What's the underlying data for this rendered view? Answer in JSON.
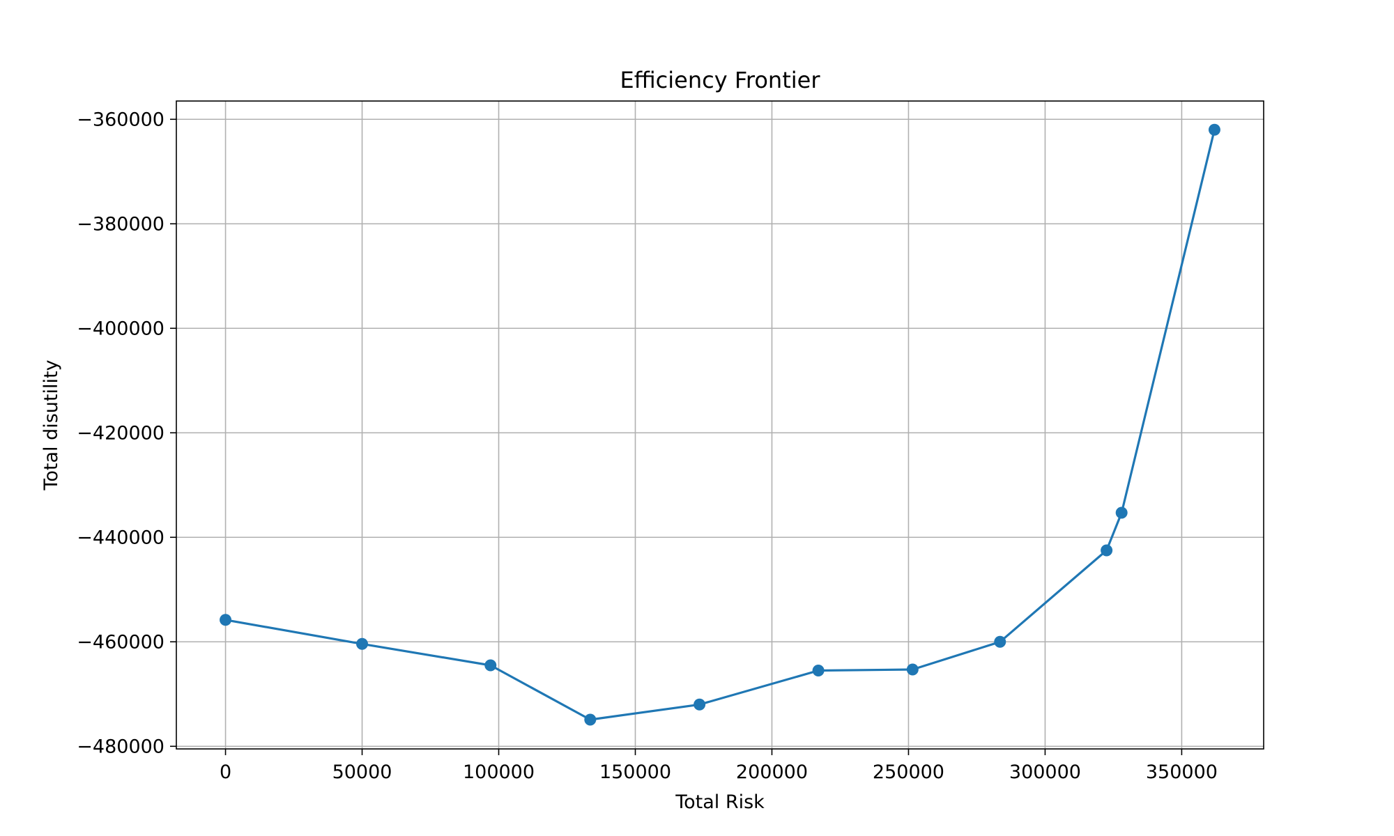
{
  "chart_data": {
    "type": "line",
    "title": "Efficiency Frontier",
    "xlabel": "Total Risk",
    "ylabel": "Total disutility",
    "xlim": [
      -18000,
      380000
    ],
    "ylim": [
      -480500,
      -356500
    ],
    "grid": true,
    "x_ticks": [
      0,
      50000,
      100000,
      150000,
      200000,
      250000,
      300000,
      350000
    ],
    "x_tick_labels": [
      "0",
      "50000",
      "100000",
      "150000",
      "200000",
      "250000",
      "300000",
      "350000"
    ],
    "y_ticks": [
      -360000,
      -380000,
      -400000,
      -420000,
      -440000,
      -460000,
      -480000
    ],
    "y_tick_labels": [
      "−360000",
      "−380000",
      "−400000",
      "−420000",
      "−440000",
      "−460000",
      "−480000"
    ],
    "series": [
      {
        "color": "#1f77b4",
        "marker": "circle",
        "x": [
          0,
          50000,
          97000,
          133500,
          173500,
          217000,
          251500,
          283500,
          322500,
          328000,
          362000
        ],
        "y": [
          -455800,
          -460400,
          -464500,
          -474900,
          -472000,
          -465500,
          -465300,
          -460000,
          -442500,
          -435300,
          -362000
        ]
      }
    ]
  }
}
